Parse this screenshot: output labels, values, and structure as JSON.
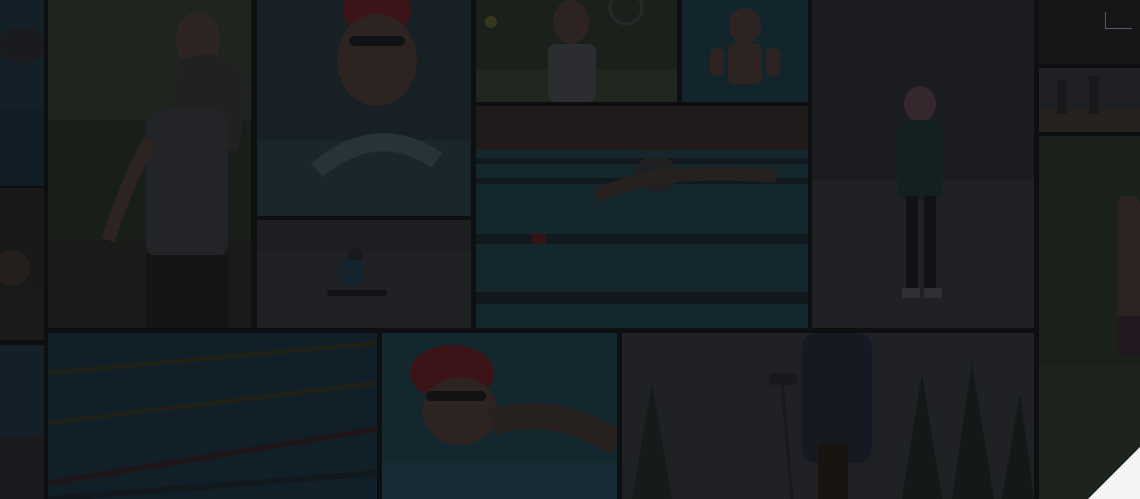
{
  "collage": {
    "description_tiles": [
      {
        "name": "swimmer-goggles-left-tile"
      },
      {
        "name": "woman-running-tile"
      },
      {
        "name": "swimmer-red-cap-tile"
      },
      {
        "name": "tennis-player-tile"
      },
      {
        "name": "kid-thumbs-up-pool-tile"
      },
      {
        "name": "child-snow-tile"
      },
      {
        "name": "runners-track-tile"
      },
      {
        "name": "pool-butterfly-swimmer-tile"
      },
      {
        "name": "snowboarder-tile"
      },
      {
        "name": "woman-jogging-right-tile"
      },
      {
        "name": "girl-left-tile"
      },
      {
        "name": "pool-lanes-tile"
      },
      {
        "name": "swimmer-freestyle-tile"
      },
      {
        "name": "skier-forest-tile"
      },
      {
        "name": "edge-left-bottom-tile"
      }
    ]
  },
  "colors": {
    "pool_blue": "#1c3a4a",
    "pool_teal": "#1f4b55",
    "grass": "#2b3a24",
    "snow": "#3a3d41",
    "skin": "#5a4238",
    "red_cap": "#7a1f25",
    "dark": "#1a1b1d"
  },
  "ui": {
    "corner_mark_icon": "corner-bracket-icon",
    "corner_fold_icon": "page-curl-icon"
  }
}
